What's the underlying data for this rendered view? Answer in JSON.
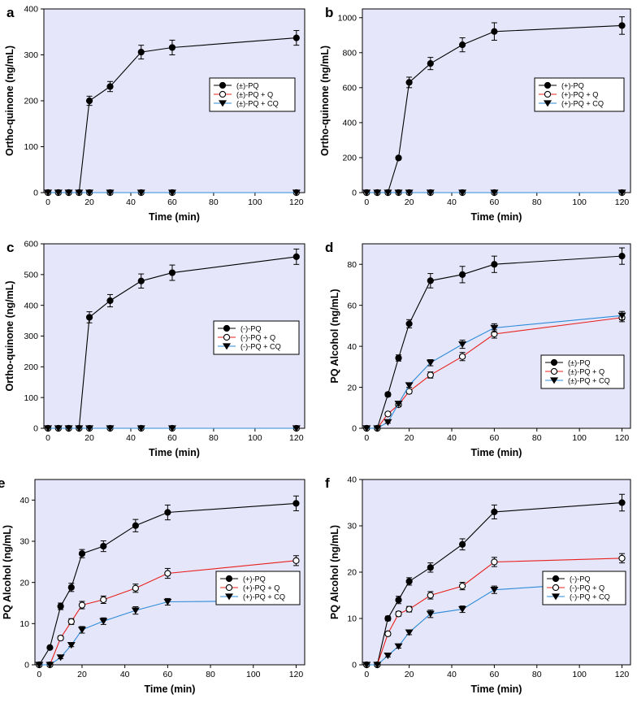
{
  "colors": {
    "plot_bg": "#e6e6fa",
    "s1": "#000000",
    "s2": "#e8201c",
    "s3": "#2c8bd8"
  },
  "chart_data": [
    {
      "panel_label": "a",
      "type": "line",
      "title": "",
      "xlabel": "Time (min)",
      "ylabel": "Ortho-quinone (ng/mL)",
      "xlim": [
        -2,
        124
      ],
      "ylim": [
        0,
        400
      ],
      "xticks": [
        "0",
        "20",
        "40",
        "60",
        "80",
        "100",
        "120"
      ],
      "yticks": [
        "0",
        "100",
        "200",
        "300",
        "400"
      ],
      "legend_position": "center-right",
      "series": [
        {
          "name": "(±)-PQ",
          "marker": "filled-circle",
          "color": "#000000",
          "x": [
            0,
            5,
            10,
            15,
            20,
            30,
            45,
            60,
            120
          ],
          "y": [
            0,
            0,
            0,
            0,
            200,
            231,
            306,
            316,
            337
          ],
          "err": [
            0,
            0,
            0,
            0,
            10,
            11,
            15,
            16,
            16
          ]
        },
        {
          "name": "(±)-PQ + Q",
          "marker": "open-circle",
          "color": "#e8201c",
          "x": [
            0,
            5,
            10,
            15,
            20,
            30,
            45,
            60,
            120
          ],
          "y": [
            0,
            0,
            0,
            0,
            0,
            0,
            0,
            0,
            0
          ],
          "err": [
            0,
            0,
            0,
            0,
            0,
            0,
            0,
            0,
            0
          ]
        },
        {
          "name": "(±)-PQ + CQ",
          "marker": "filled-triangle-down",
          "color": "#2c8bd8",
          "x": [
            0,
            5,
            10,
            15,
            20,
            30,
            45,
            60,
            120
          ],
          "y": [
            0,
            0,
            0,
            0,
            0,
            0,
            0,
            0,
            0
          ],
          "err": [
            0,
            0,
            0,
            0,
            0,
            0,
            0,
            0,
            0
          ]
        }
      ]
    },
    {
      "panel_label": "b",
      "type": "line",
      "title": "",
      "xlabel": "Time (min)",
      "ylabel": "Ortho-quinone (ng/mL)",
      "xlim": [
        -2,
        124
      ],
      "ylim": [
        0,
        1050
      ],
      "xticks": [
        "0",
        "20",
        "40",
        "60",
        "80",
        "100",
        "120"
      ],
      "yticks": [
        "0",
        "200",
        "400",
        "600",
        "800",
        "1000"
      ],
      "legend_position": "center-right",
      "series": [
        {
          "name": "(+)-PQ",
          "marker": "filled-circle",
          "color": "#000000",
          "x": [
            0,
            5,
            10,
            15,
            20,
            30,
            45,
            60,
            120
          ],
          "y": [
            0,
            0,
            0,
            198,
            630,
            738,
            845,
            921,
            955
          ],
          "err": [
            0,
            0,
            0,
            10,
            30,
            35,
            40,
            50,
            50
          ]
        },
        {
          "name": "(+)-PQ + Q",
          "marker": "open-circle",
          "color": "#e8201c",
          "x": [
            0,
            5,
            10,
            15,
            20,
            30,
            45,
            60,
            120
          ],
          "y": [
            0,
            0,
            0,
            0,
            0,
            0,
            0,
            0,
            0
          ],
          "err": [
            0,
            0,
            0,
            0,
            0,
            0,
            0,
            0,
            0
          ]
        },
        {
          "name": "(+)-PQ + CQ",
          "marker": "filled-triangle-down",
          "color": "#2c8bd8",
          "x": [
            0,
            5,
            10,
            15,
            20,
            30,
            45,
            60,
            120
          ],
          "y": [
            0,
            0,
            0,
            0,
            0,
            0,
            0,
            0,
            0
          ],
          "err": [
            0,
            0,
            0,
            0,
            0,
            0,
            0,
            0,
            0
          ]
        }
      ]
    },
    {
      "panel_label": "c",
      "type": "line",
      "title": "",
      "xlabel": "Time (min)",
      "ylabel": "Ortho-quinone (ng/mL)",
      "xlim": [
        -2,
        124
      ],
      "ylim": [
        0,
        600
      ],
      "xticks": [
        "0",
        "20",
        "40",
        "60",
        "80",
        "100",
        "120"
      ],
      "yticks": [
        "0",
        "100",
        "200",
        "300",
        "400",
        "500",
        "600"
      ],
      "legend_position": "center-right",
      "series": [
        {
          "name": "(-)-PQ",
          "marker": "filled-circle",
          "color": "#000000",
          "x": [
            0,
            5,
            10,
            15,
            20,
            30,
            45,
            60,
            120
          ],
          "y": [
            0,
            0,
            0,
            0,
            361,
            415,
            479,
            506,
            558
          ],
          "err": [
            0,
            0,
            0,
            0,
            18,
            20,
            23,
            25,
            25
          ]
        },
        {
          "name": "(-)-PQ + Q",
          "marker": "open-circle",
          "color": "#e8201c",
          "x": [
            0,
            5,
            10,
            15,
            20,
            30,
            45,
            60,
            120
          ],
          "y": [
            0,
            0,
            0,
            0,
            0,
            0,
            0,
            0,
            0
          ],
          "err": [
            0,
            0,
            0,
            0,
            0,
            0,
            0,
            0,
            0
          ]
        },
        {
          "name": "(-)-PQ + CQ",
          "marker": "filled-triangle-down",
          "color": "#2c8bd8",
          "x": [
            0,
            5,
            10,
            15,
            20,
            30,
            45,
            60,
            120
          ],
          "y": [
            0,
            0,
            0,
            0,
            0,
            0,
            0,
            0,
            0
          ],
          "err": [
            0,
            0,
            0,
            0,
            0,
            0,
            0,
            0,
            0
          ]
        }
      ]
    },
    {
      "panel_label": "d",
      "type": "line",
      "title": "",
      "xlabel": "Time (min)",
      "ylabel": "PQ Alcohol (ng/mL)",
      "xlim": [
        -2,
        124
      ],
      "ylim": [
        0,
        90
      ],
      "xticks": [
        "0",
        "20",
        "40",
        "60",
        "80",
        "100",
        "120"
      ],
      "yticks": [
        "0",
        "20",
        "40",
        "60",
        "80"
      ],
      "legend_position": "lower-right",
      "series": [
        {
          "name": "(±)-PQ",
          "marker": "filled-circle",
          "color": "#000000",
          "x": [
            0,
            5,
            10,
            15,
            20,
            30,
            45,
            60,
            120
          ],
          "y": [
            0,
            0,
            16.5,
            34.3,
            51,
            72,
            75,
            80,
            84
          ],
          "err": [
            0,
            0,
            1,
            1.5,
            2,
            3.5,
            4,
            4,
            4
          ]
        },
        {
          "name": "(±)-PQ + Q",
          "marker": "open-circle",
          "color": "#e8201c",
          "x": [
            0,
            5,
            10,
            15,
            20,
            30,
            45,
            60,
            120
          ],
          "y": [
            0,
            0,
            7,
            11.5,
            18,
            26,
            35,
            46,
            54
          ],
          "err": [
            0,
            0,
            0.5,
            1,
            1,
            1.5,
            2,
            2,
            2
          ]
        },
        {
          "name": "(±)-PQ + CQ",
          "marker": "filled-triangle-down",
          "color": "#2c8bd8",
          "x": [
            0,
            5,
            10,
            15,
            20,
            30,
            45,
            60,
            120
          ],
          "y": [
            0,
            0,
            3,
            12,
            21,
            32,
            41,
            49,
            55
          ],
          "err": [
            0,
            0,
            0.5,
            1,
            1,
            1.5,
            2,
            2,
            2
          ]
        }
      ]
    },
    {
      "panel_label": "e",
      "type": "line",
      "title": "",
      "xlabel": "Time (min)",
      "ylabel": "PQ Alcohol (ng/mL)",
      "xlim": [
        -2,
        124
      ],
      "ylim": [
        0,
        45
      ],
      "xticks": [
        "0",
        "20",
        "40",
        "60",
        "80",
        "100",
        "120"
      ],
      "yticks": [
        "0",
        "10",
        "20",
        "30",
        "40"
      ],
      "legend_position": "lower-right",
      "series": [
        {
          "name": "(+)-PQ",
          "marker": "filled-circle",
          "color": "#000000",
          "x": [
            0,
            5,
            10,
            15,
            20,
            30,
            45,
            60,
            120
          ],
          "y": [
            0,
            4.2,
            14.2,
            18.8,
            27,
            28.8,
            33.8,
            37,
            39.2
          ],
          "err": [
            0,
            0.3,
            0.8,
            1,
            1,
            1.3,
            1.5,
            1.8,
            1.8
          ]
        },
        {
          "name": "(+)-PQ + Q",
          "marker": "open-circle",
          "color": "#e8201c",
          "x": [
            0,
            5,
            10,
            15,
            20,
            30,
            45,
            60,
            120
          ],
          "y": [
            0,
            0,
            6.5,
            10.5,
            14.5,
            15.8,
            18.6,
            22.2,
            25.3
          ],
          "err": [
            0,
            0,
            0.5,
            0.7,
            0.9,
            0.9,
            1,
            1.2,
            1.2
          ]
        },
        {
          "name": "(+)-PQ + CQ",
          "marker": "filled-triangle-down",
          "color": "#2c8bd8",
          "x": [
            0,
            5,
            10,
            15,
            20,
            30,
            45,
            60,
            120
          ],
          "y": [
            0,
            0,
            1.8,
            4.8,
            8.5,
            10.6,
            13.2,
            15.3,
            15.6
          ],
          "err": [
            0,
            0,
            0.3,
            0.4,
            0.8,
            0.8,
            0.9,
            0.8,
            0.6
          ]
        }
      ]
    },
    {
      "panel_label": "f",
      "type": "line",
      "title": "",
      "xlabel": "Time (min)",
      "ylabel": "PQ Alcohol (ng/mL)",
      "xlim": [
        -2,
        124
      ],
      "ylim": [
        0,
        40
      ],
      "xticks": [
        "0",
        "20",
        "40",
        "60",
        "80",
        "100",
        "120"
      ],
      "yticks": [
        "0",
        "10",
        "20",
        "30",
        "40"
      ],
      "legend_position": "lower-right",
      "series": [
        {
          "name": "(-)-PQ",
          "marker": "filled-circle",
          "color": "#000000",
          "x": [
            0,
            5,
            10,
            15,
            20,
            30,
            45,
            60,
            120
          ],
          "y": [
            0,
            0,
            10,
            14,
            18,
            21,
            26,
            33,
            35
          ],
          "err": [
            0,
            0,
            0.5,
            0.8,
            0.8,
            1,
            1.2,
            1.5,
            1.8
          ]
        },
        {
          "name": "(-)-PQ + Q",
          "marker": "open-circle",
          "color": "#e8201c",
          "x": [
            0,
            5,
            10,
            15,
            20,
            30,
            45,
            60,
            120
          ],
          "y": [
            0,
            0,
            6.7,
            11,
            12,
            15,
            17,
            22.2,
            23
          ],
          "err": [
            0,
            0,
            0.4,
            0.5,
            0.6,
            0.8,
            0.8,
            1,
            1
          ]
        },
        {
          "name": "(-)-PQ + CQ",
          "marker": "filled-triangle-down",
          "color": "#2c8bd8",
          "x": [
            0,
            5,
            10,
            15,
            20,
            30,
            45,
            60,
            120
          ],
          "y": [
            0,
            0,
            2,
            4,
            7,
            11,
            12,
            16.2,
            18
          ],
          "err": [
            0,
            0,
            0.3,
            0.4,
            0.5,
            0.8,
            0.7,
            0.8,
            0.8
          ]
        }
      ]
    }
  ]
}
